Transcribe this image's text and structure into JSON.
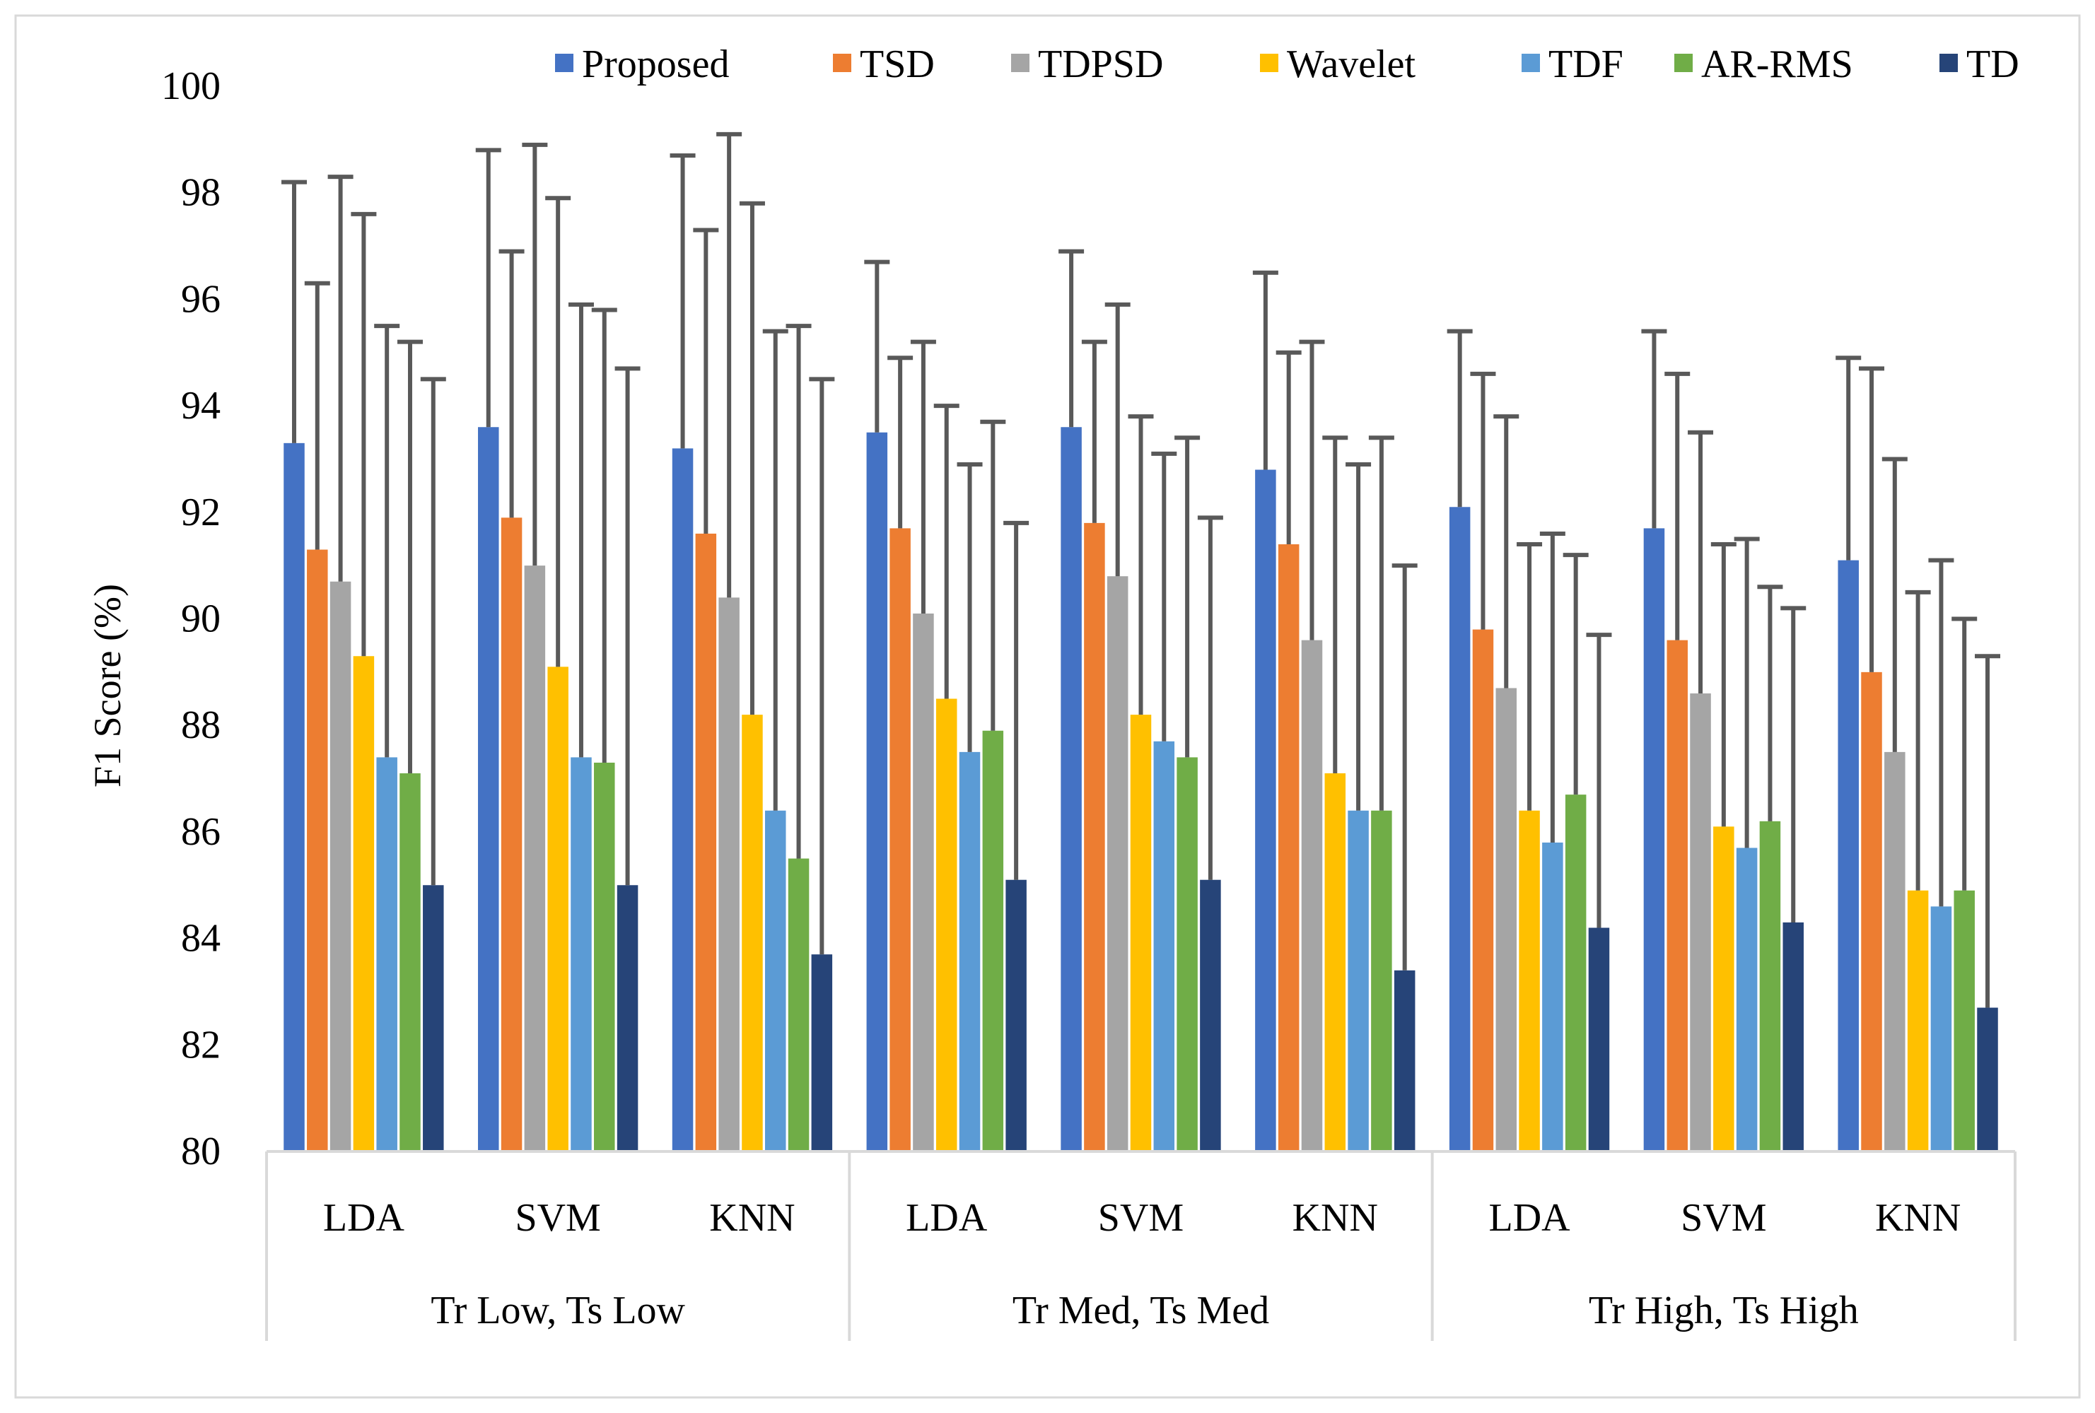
{
  "chart_data": {
    "type": "bar",
    "title": "",
    "xlabel": "",
    "ylabel": "F1 Score (%)",
    "ylim": [
      80,
      100
    ],
    "yticks": [
      80,
      82,
      84,
      86,
      88,
      90,
      92,
      94,
      96,
      98,
      100
    ],
    "legend_position": "top-right",
    "groups": [
      "Tr Low, Ts Low",
      "Tr Med, Ts Med",
      "Tr High, Ts High"
    ],
    "categories": [
      "LDA",
      "SVM",
      "KNN",
      "LDA",
      "SVM",
      "KNN",
      "LDA",
      "SVM",
      "KNN"
    ],
    "error_bars": "upper only",
    "series": [
      {
        "name": "Proposed",
        "color": "#4472C4",
        "values": [
          93.3,
          93.6,
          93.2,
          93.5,
          93.6,
          92.8,
          92.1,
          91.7,
          91.1
        ],
        "error_top": [
          98.2,
          98.8,
          98.7,
          96.7,
          96.9,
          96.5,
          95.4,
          95.4,
          94.9
        ]
      },
      {
        "name": "TSD",
        "color": "#ED7D31",
        "values": [
          91.3,
          91.9,
          91.6,
          91.7,
          91.8,
          91.4,
          89.8,
          89.6,
          89.0
        ],
        "error_top": [
          96.3,
          96.9,
          97.3,
          94.9,
          95.2,
          95.0,
          94.6,
          94.6,
          94.7
        ]
      },
      {
        "name": "TDPSD",
        "color": "#A5A5A5",
        "values": [
          90.7,
          91.0,
          90.4,
          90.1,
          90.8,
          89.6,
          88.7,
          88.6,
          87.5
        ],
        "error_top": [
          98.3,
          98.9,
          99.1,
          95.2,
          95.9,
          95.2,
          93.8,
          93.5,
          93.0
        ]
      },
      {
        "name": "Wavelet",
        "color": "#FFC000",
        "values": [
          89.3,
          89.1,
          88.2,
          88.5,
          88.2,
          87.1,
          86.4,
          86.1,
          84.9
        ],
        "error_top": [
          97.6,
          97.9,
          97.8,
          94.0,
          93.8,
          93.4,
          91.4,
          91.4,
          90.5
        ]
      },
      {
        "name": "TDF",
        "color": "#5B9BD5",
        "values": [
          87.4,
          87.4,
          86.4,
          87.5,
          87.7,
          86.4,
          85.8,
          85.7,
          84.6
        ],
        "error_top": [
          95.5,
          95.9,
          95.4,
          92.9,
          93.1,
          92.9,
          91.6,
          91.5,
          91.1
        ]
      },
      {
        "name": "AR-RMS",
        "color": "#70AD47",
        "values": [
          87.1,
          87.3,
          85.5,
          87.9,
          87.4,
          86.4,
          86.7,
          86.2,
          84.9
        ],
        "error_top": [
          95.2,
          95.8,
          95.5,
          93.7,
          93.4,
          93.4,
          91.2,
          90.6,
          90.0
        ]
      },
      {
        "name": "TD",
        "color": "#264478",
        "values": [
          85.0,
          85.0,
          83.7,
          85.1,
          85.1,
          83.4,
          84.2,
          84.3,
          82.7
        ],
        "error_top": [
          94.5,
          94.7,
          94.5,
          91.8,
          91.9,
          91.0,
          89.7,
          90.2,
          89.3
        ]
      }
    ]
  }
}
